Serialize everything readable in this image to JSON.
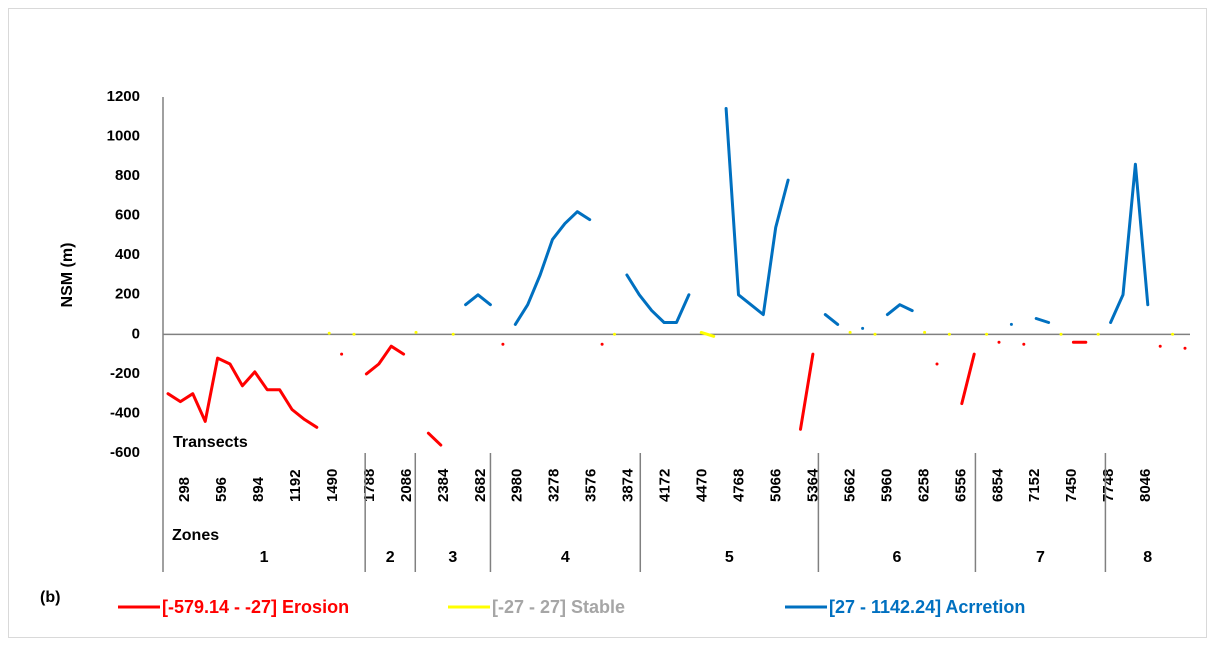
{
  "chart_data": {
    "type": "line",
    "y_label": "NSM (m)",
    "x_label": "Transects",
    "zone_label": "Zones",
    "panel_label": "(b)",
    "x": [
      200,
      300,
      400,
      500,
      600,
      700,
      800,
      900,
      1000,
      1100,
      1200,
      1300,
      1400,
      1500,
      1600,
      1700,
      1800,
      1900,
      2000,
      2100,
      2200,
      2300,
      2400,
      2500,
      2600,
      2700,
      2800,
      2900,
      3000,
      3100,
      3200,
      3300,
      3400,
      3500,
      3600,
      3700,
      3800,
      3900,
      4000,
      4100,
      4200,
      4300,
      4400,
      4500,
      4600,
      4700,
      4800,
      4900,
      5000,
      5100,
      5200,
      5300,
      5400,
      5500,
      5600,
      5700,
      5800,
      5900,
      6000,
      6100,
      6200,
      6300,
      6400,
      6500,
      6600,
      6700,
      6800,
      6900,
      7000,
      7100,
      7200,
      7300,
      7400,
      7500,
      7600,
      7700,
      7800,
      7900,
      8000,
      8100,
      8200,
      8300,
      8400
    ],
    "series": [
      {
        "name": "[-579.14 - -27] Erosion",
        "color": "#ff0000",
        "text_color": "#ff0000",
        "values": [
          -300,
          -340,
          -300,
          -440,
          -120,
          -150,
          -260,
          -190,
          -280,
          -280,
          -380,
          -430,
          -470,
          null,
          -100,
          null,
          -200,
          -150,
          -60,
          -100,
          null,
          -500,
          -560,
          null,
          null,
          null,
          null,
          -50,
          null,
          null,
          null,
          null,
          null,
          null,
          null,
          -50,
          null,
          null,
          null,
          null,
          null,
          null,
          null,
          null,
          null,
          null,
          null,
          null,
          null,
          null,
          null,
          -480,
          -100,
          null,
          null,
          null,
          null,
          null,
          null,
          null,
          null,
          null,
          -150,
          null,
          -350,
          -100,
          null,
          -40,
          null,
          -50,
          null,
          null,
          null,
          -40,
          -40,
          null,
          null,
          null,
          null,
          null,
          -60,
          null,
          -70
        ]
      },
      {
        "name": "[-27 - 27] Stable",
        "color": "#ffff00",
        "text_color": "#a6a6a6",
        "values": [
          null,
          null,
          null,
          null,
          null,
          null,
          null,
          null,
          null,
          null,
          null,
          null,
          null,
          5,
          null,
          0,
          null,
          null,
          null,
          null,
          10,
          null,
          null,
          0,
          null,
          null,
          null,
          null,
          null,
          null,
          null,
          null,
          null,
          null,
          null,
          null,
          0,
          null,
          null,
          null,
          null,
          null,
          null,
          10,
          -10,
          null,
          null,
          null,
          null,
          null,
          null,
          null,
          null,
          null,
          null,
          10,
          null,
          0,
          null,
          null,
          null,
          10,
          null,
          0,
          null,
          null,
          0,
          null,
          null,
          null,
          null,
          null,
          0,
          null,
          null,
          0,
          null,
          null,
          null,
          null,
          null,
          0,
          null
        ]
      },
      {
        "name": "[27 - 1142.24] Acrretion",
        "color": "#0070c0",
        "text_color": "#0070c0",
        "values": [
          null,
          null,
          null,
          null,
          null,
          null,
          null,
          null,
          null,
          null,
          null,
          null,
          null,
          null,
          null,
          null,
          null,
          null,
          null,
          null,
          null,
          null,
          null,
          null,
          150,
          200,
          150,
          null,
          50,
          150,
          300,
          480,
          560,
          620,
          580,
          null,
          null,
          300,
          200,
          120,
          60,
          60,
          200,
          null,
          null,
          1142,
          200,
          150,
          100,
          540,
          780,
          null,
          null,
          100,
          50,
          null,
          30,
          null,
          100,
          150,
          120,
          null,
          null,
          null,
          null,
          null,
          null,
          null,
          50,
          null,
          80,
          60,
          null,
          null,
          null,
          null,
          60,
          200,
          860,
          150,
          null,
          null,
          null
        ]
      }
    ],
    "xlim": [
      160,
      8440
    ],
    "xticks": [
      298,
      596,
      894,
      1192,
      1490,
      1788,
      2086,
      2384,
      2682,
      2980,
      3278,
      3576,
      3874,
      4172,
      4470,
      4768,
      5066,
      5364,
      5662,
      5960,
      6258,
      6556,
      6854,
      7152,
      7450,
      7748,
      8046
    ],
    "ylim": [
      -600,
      1200
    ],
    "yticks": [
      -600,
      -400,
      -200,
      0,
      200,
      400,
      600,
      800,
      1000,
      1200
    ],
    "zones": {
      "labels": [
        "1",
        "2",
        "3",
        "4",
        "5",
        "6",
        "7",
        "8"
      ],
      "bounds": [
        160,
        1790,
        2194,
        2800,
        4008,
        5444,
        6710,
        7758
      ]
    },
    "grid": false
  }
}
